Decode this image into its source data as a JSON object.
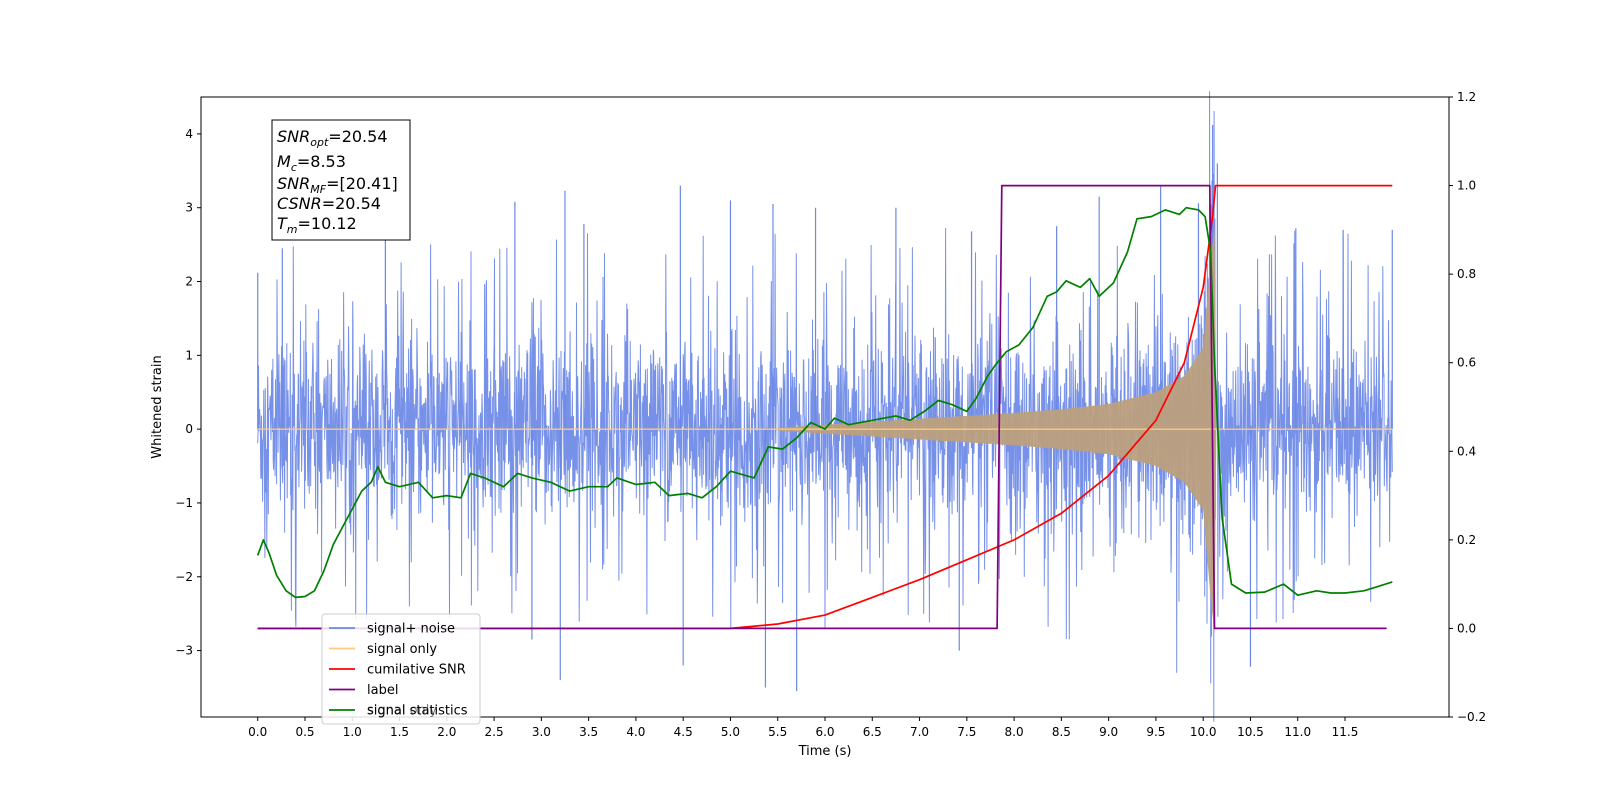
{
  "chart_data": {
    "type": "line",
    "xlabel": "Time (s)",
    "ylabel": "Whitened strain",
    "xlim": [
      -0.6,
      12.6
    ],
    "ylim": [
      -3.9,
      4.5
    ],
    "y2lim": [
      -0.2,
      1.2
    ],
    "x_ticks": [
      0.0,
      0.5,
      1.0,
      1.5,
      2.0,
      2.5,
      3.0,
      3.5,
      4.0,
      4.5,
      5.0,
      5.5,
      6.0,
      6.5,
      7.0,
      7.5,
      8.0,
      8.5,
      9.0,
      9.5,
      10.0,
      10.5,
      11.0,
      11.5
    ],
    "x_tick_labels": [
      "0.0",
      "0.5",
      "1.0",
      "1.5",
      "2.0",
      "2.5",
      "3.0",
      "3.5",
      "4.0",
      "4.5",
      "5.0",
      "5.5",
      "6.0",
      "6.5",
      "7.0",
      "7.5",
      "8.0",
      "8.5",
      "9.0",
      "9.5",
      "10.0",
      "10.5",
      "11.0",
      "11.5"
    ],
    "y_ticks": [
      -3,
      -2,
      -1,
      0,
      1,
      2,
      3,
      4
    ],
    "y_tick_labels": [
      "−3",
      "−2",
      "−1",
      "0",
      "1",
      "2",
      "3",
      "4"
    ],
    "y2_ticks": [
      -0.2,
      0.0,
      0.2,
      0.4,
      0.6,
      0.8,
      1.0,
      1.2
    ],
    "y2_tick_labels": [
      "−0.2",
      "0.0",
      "0.2",
      "0.4",
      "0.6",
      "0.8",
      "1.0",
      "1.2"
    ],
    "grid": false,
    "legend_position": "bottom-left",
    "legend": [
      {
        "label": "signal+ noise",
        "color": "#6b88e6"
      },
      {
        "label": "signal only",
        "color": "#ffc87a"
      },
      {
        "label": "cumilative SNR",
        "color": "#ff0000"
      },
      {
        "label": "label",
        "color": "#800080"
      },
      {
        "label": "signal statistics",
        "color": "#008000"
      }
    ],
    "legend_ghost_label": "signal only",
    "annotation": {
      "line1": {
        "main": "SNR",
        "sub": "opt",
        "rest": "=20.54"
      },
      "line2": {
        "main": "M",
        "sub": "c",
        "rest": "=8.53"
      },
      "line3": {
        "main": "SNR",
        "sub": "MF",
        "rest": "=[20.41]"
      },
      "line4": {
        "main": "CSNR",
        "sub": "",
        "rest": "=20.54"
      },
      "line5": {
        "main": "T",
        "sub": "m",
        "rest": "=10.12"
      }
    },
    "series": [
      {
        "name": "signal+ noise",
        "axis": "left",
        "color": "#6b88e6",
        "x_range": [
          0.0,
          12.0
        ],
        "noise_band": [
          -1.9,
          1.9
        ],
        "peak_points": [
          [
            0.0,
            2.12
          ],
          [
            0.26,
            2.45
          ],
          [
            1.35,
            3.25
          ],
          [
            2.72,
            3.08
          ],
          [
            3.25,
            3.23
          ],
          [
            3.45,
            2.78
          ],
          [
            4.47,
            3.3
          ],
          [
            5.0,
            3.1
          ],
          [
            5.45,
            3.05
          ],
          [
            5.9,
            3.0
          ],
          [
            6.75,
            3.0
          ],
          [
            7.55,
            2.68
          ],
          [
            8.45,
            2.75
          ],
          [
            8.9,
            3.15
          ],
          [
            9.55,
            3.3
          ],
          [
            9.95,
            3.06
          ],
          [
            10.1,
            4.12
          ],
          [
            10.15,
            3.6
          ],
          [
            10.98,
            2.72
          ],
          [
            11.48,
            2.7
          ],
          [
            12.0,
            2.7
          ],
          [
            3.2,
            -3.4
          ],
          [
            4.5,
            -3.2
          ],
          [
            5.37,
            -3.5
          ],
          [
            5.7,
            -3.55
          ],
          [
            10.5,
            -3.22
          ],
          [
            7.42,
            -3.0
          ],
          [
            2.9,
            -2.85
          ]
        ]
      },
      {
        "name": "signal only",
        "axis": "left",
        "color": "#ffc87a",
        "chirp_envelope": [
          [
            5.5,
            0.02
          ],
          [
            6.0,
            0.06
          ],
          [
            6.5,
            0.1
          ],
          [
            7.0,
            0.14
          ],
          [
            7.5,
            0.18
          ],
          [
            8.0,
            0.22
          ],
          [
            8.5,
            0.27
          ],
          [
            9.0,
            0.34
          ],
          [
            9.5,
            0.5
          ],
          [
            9.8,
            0.72
          ],
          [
            10.0,
            1.1
          ],
          [
            10.08,
            2.3
          ],
          [
            10.12,
            2.75
          ],
          [
            10.14,
            0.0
          ]
        ]
      },
      {
        "name": "cumilative SNR",
        "axis": "right",
        "color": "#ff0000",
        "points": [
          [
            0.0,
            0.0
          ],
          [
            5.0,
            0.0
          ],
          [
            5.5,
            0.01
          ],
          [
            6.0,
            0.03
          ],
          [
            6.5,
            0.07
          ],
          [
            7.0,
            0.11
          ],
          [
            7.5,
            0.155
          ],
          [
            8.0,
            0.2
          ],
          [
            8.5,
            0.26
          ],
          [
            9.0,
            0.345
          ],
          [
            9.5,
            0.47
          ],
          [
            9.8,
            0.6
          ],
          [
            10.0,
            0.77
          ],
          [
            10.1,
            0.93
          ],
          [
            10.13,
            1.0
          ],
          [
            12.0,
            1.0
          ]
        ]
      },
      {
        "name": "label",
        "axis": "right",
        "color": "#800080",
        "points": [
          [
            0.0,
            0.0
          ],
          [
            7.82,
            0.0
          ],
          [
            7.87,
            1.0
          ],
          [
            10.07,
            1.0
          ],
          [
            10.12,
            0.0
          ],
          [
            11.94,
            0.0
          ]
        ]
      },
      {
        "name": "signal statistics",
        "axis": "right",
        "color": "#008000",
        "points": [
          [
            0.0,
            0.165
          ],
          [
            0.06,
            0.2
          ],
          [
            0.12,
            0.17
          ],
          [
            0.2,
            0.12
          ],
          [
            0.3,
            0.085
          ],
          [
            0.4,
            0.07
          ],
          [
            0.5,
            0.072
          ],
          [
            0.6,
            0.085
          ],
          [
            0.7,
            0.13
          ],
          [
            0.8,
            0.19
          ],
          [
            0.9,
            0.23
          ],
          [
            1.0,
            0.27
          ],
          [
            1.1,
            0.31
          ],
          [
            1.2,
            0.33
          ],
          [
            1.27,
            0.365
          ],
          [
            1.35,
            0.33
          ],
          [
            1.5,
            0.32
          ],
          [
            1.7,
            0.33
          ],
          [
            1.85,
            0.295
          ],
          [
            2.0,
            0.3
          ],
          [
            2.15,
            0.295
          ],
          [
            2.25,
            0.35
          ],
          [
            2.4,
            0.34
          ],
          [
            2.6,
            0.32
          ],
          [
            2.75,
            0.35
          ],
          [
            2.9,
            0.34
          ],
          [
            3.1,
            0.33
          ],
          [
            3.3,
            0.31
          ],
          [
            3.5,
            0.32
          ],
          [
            3.7,
            0.32
          ],
          [
            3.8,
            0.34
          ],
          [
            4.0,
            0.325
          ],
          [
            4.2,
            0.33
          ],
          [
            4.35,
            0.3
          ],
          [
            4.55,
            0.305
          ],
          [
            4.7,
            0.295
          ],
          [
            4.85,
            0.32
          ],
          [
            5.0,
            0.355
          ],
          [
            5.25,
            0.34
          ],
          [
            5.4,
            0.41
          ],
          [
            5.55,
            0.405
          ],
          [
            5.7,
            0.43
          ],
          [
            5.85,
            0.465
          ],
          [
            6.0,
            0.45
          ],
          [
            6.1,
            0.475
          ],
          [
            6.25,
            0.46
          ],
          [
            6.5,
            0.47
          ],
          [
            6.75,
            0.48
          ],
          [
            6.9,
            0.47
          ],
          [
            7.05,
            0.49
          ],
          [
            7.2,
            0.515
          ],
          [
            7.35,
            0.505
          ],
          [
            7.5,
            0.49
          ],
          [
            7.6,
            0.52
          ],
          [
            7.72,
            0.57
          ],
          [
            7.82,
            0.6
          ],
          [
            7.92,
            0.625
          ],
          [
            8.05,
            0.64
          ],
          [
            8.2,
            0.68
          ],
          [
            8.35,
            0.75
          ],
          [
            8.45,
            0.76
          ],
          [
            8.55,
            0.785
          ],
          [
            8.7,
            0.77
          ],
          [
            8.8,
            0.79
          ],
          [
            8.9,
            0.75
          ],
          [
            9.05,
            0.78
          ],
          [
            9.2,
            0.85
          ],
          [
            9.3,
            0.925
          ],
          [
            9.45,
            0.93
          ],
          [
            9.6,
            0.945
          ],
          [
            9.75,
            0.935
          ],
          [
            9.82,
            0.95
          ],
          [
            9.95,
            0.945
          ],
          [
            10.02,
            0.93
          ],
          [
            10.08,
            0.85
          ],
          [
            10.12,
            0.6
          ],
          [
            10.2,
            0.25
          ],
          [
            10.3,
            0.1
          ],
          [
            10.45,
            0.08
          ],
          [
            10.65,
            0.082
          ],
          [
            10.85,
            0.1
          ],
          [
            11.0,
            0.075
          ],
          [
            11.2,
            0.085
          ],
          [
            11.35,
            0.08
          ],
          [
            11.5,
            0.08
          ],
          [
            11.7,
            0.085
          ],
          [
            11.85,
            0.095
          ],
          [
            12.0,
            0.105
          ]
        ]
      }
    ]
  }
}
